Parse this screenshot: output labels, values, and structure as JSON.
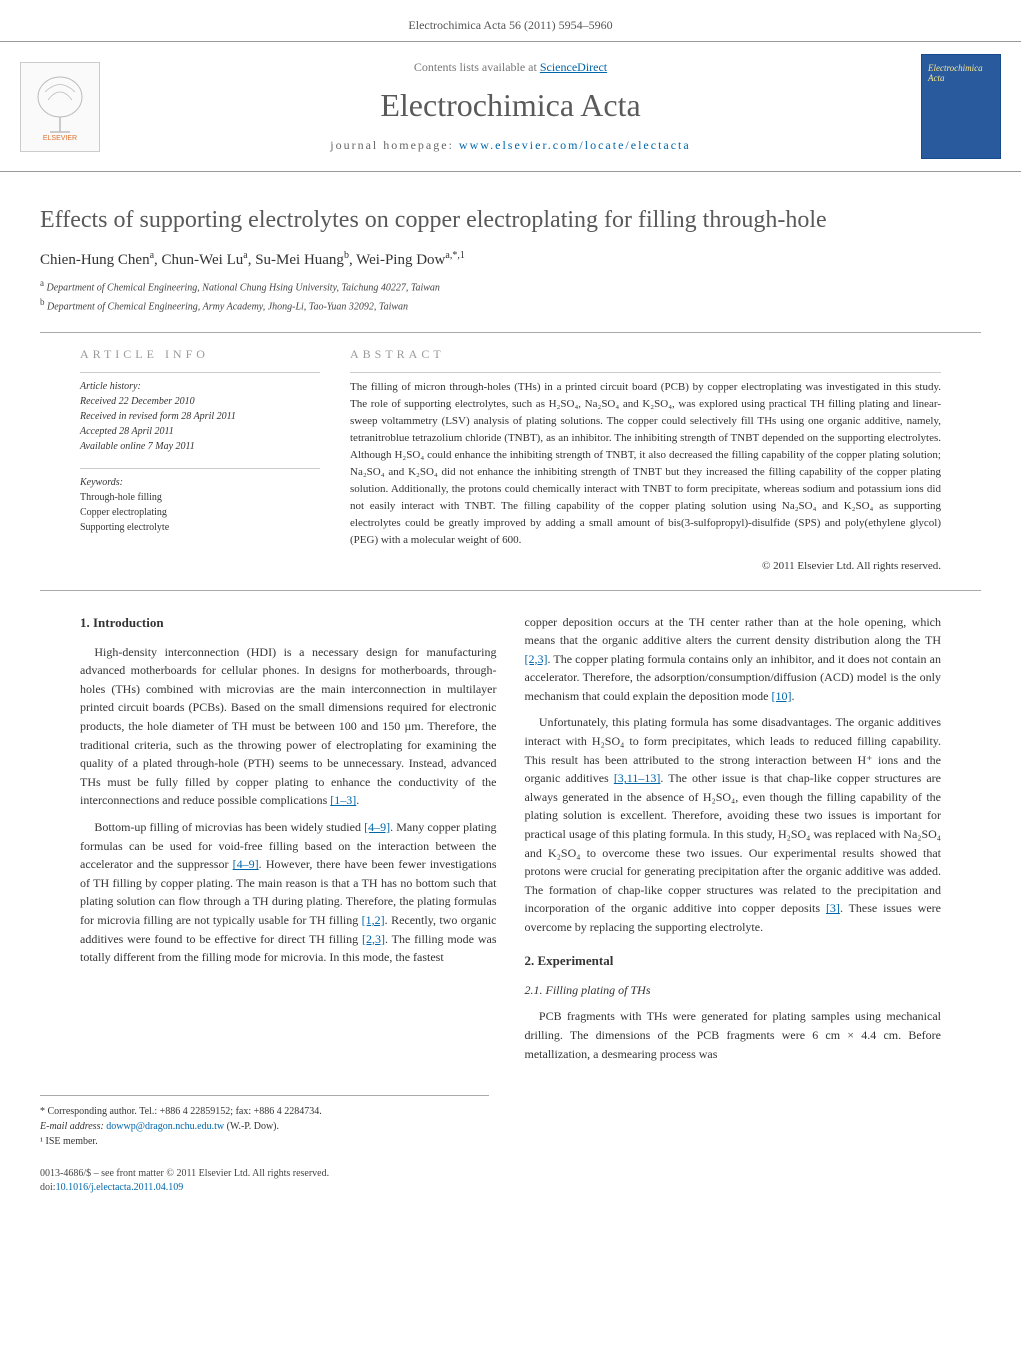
{
  "header": {
    "citation": "Electrochimica Acta 56 (2011) 5954–5960"
  },
  "masthead": {
    "contents_line_prefix": "Contents lists available at ",
    "contents_line_link": "ScienceDirect",
    "journal_name": "Electrochimica Acta",
    "homepage_prefix": "journal homepage: ",
    "homepage_url": "www.elsevier.com/locate/electacta",
    "cover_label": "Electrochimica Acta",
    "elsevier_label": "ELSEVIER"
  },
  "article": {
    "title": "Effects of supporting electrolytes on copper electroplating for filling through-hole",
    "authors_html": "Chien-Hung Chen<sup>a</sup>, Chun-Wei Lu<sup>a</sup>, Su-Mei Huang<sup>b</sup>, Wei-Ping Dow<sup>a,*,1</sup>",
    "affiliations": [
      {
        "sup": "a",
        "text": "Department of Chemical Engineering, National Chung Hsing University, Taichung 40227, Taiwan"
      },
      {
        "sup": "b",
        "text": "Department of Chemical Engineering, Army Academy, Jhong-Li, Tao-Yuan 32092, Taiwan"
      }
    ]
  },
  "info": {
    "heading": "ARTICLE INFO",
    "history_label": "Article history:",
    "history": [
      "Received 22 December 2010",
      "Received in revised form 28 April 2011",
      "Accepted 28 April 2011",
      "Available online 7 May 2011"
    ],
    "keywords_label": "Keywords:",
    "keywords": [
      "Through-hole filling",
      "Copper electroplating",
      "Supporting electrolyte"
    ]
  },
  "abstract": {
    "heading": "ABSTRACT",
    "text": "The filling of micron through-holes (THs) in a printed circuit board (PCB) by copper electroplating was investigated in this study. The role of supporting electrolytes, such as H₂SO₄, Na₂SO₄ and K₂SO₄, was explored using practical TH filling plating and linear-sweep voltammetry (LSV) analysis of plating solutions. The copper could selectively fill THs using one organic additive, namely, tetranitroblue tetrazolium chloride (TNBT), as an inhibitor. The inhibiting strength of TNBT depended on the supporting electrolytes. Although H₂SO₄ could enhance the inhibiting strength of TNBT, it also decreased the filling capability of the copper plating solution; Na₂SO₄ and K₂SO₄ did not enhance the inhibiting strength of TNBT but they increased the filling capability of the copper plating solution. Additionally, the protons could chemically interact with TNBT to form precipitate, whereas sodium and potassium ions did not easily interact with TNBT. The filling capability of the copper plating solution using Na₂SO₄ and K₂SO₄ as supporting electrolytes could be greatly improved by adding a small amount of bis(3-sulfopropyl)-disulfide (SPS) and poly(ethylene glycol) (PEG) with a molecular weight of 600.",
    "copyright": "© 2011 Elsevier Ltd. All rights reserved."
  },
  "body": {
    "sec1_heading": "1. Introduction",
    "col1_p1": "High-density interconnection (HDI) is a necessary design for manufacturing advanced motherboards for cellular phones. In designs for motherboards, through-holes (THs) combined with microvias are the main interconnection in multilayer printed circuit boards (PCBs). Based on the small dimensions required for electronic products, the hole diameter of TH must be between 100 and 150 µm. Therefore, the traditional criteria, such as the throwing power of electroplating for examining the quality of a plated through-hole (PTH) seems to be unnecessary. Instead, advanced THs must be fully filled by copper plating to enhance the conductivity of the interconnections and reduce possible complications ",
    "col1_p1_ref": "[1–3]",
    "col1_p2_a": "Bottom-up filling of microvias has been widely studied ",
    "col1_p2_ref1": "[4–9]",
    "col1_p2_b": ". Many copper plating formulas can be used for void-free filling based on the interaction between the accelerator and the suppressor ",
    "col1_p2_ref2": "[4–9]",
    "col1_p2_c": ". However, there have been fewer investigations of TH filling by copper plating. The main reason is that a TH has no bottom such that plating solution can flow through a TH during plating. Therefore, the plating formulas for microvia filling are not typically usable for TH filling ",
    "col1_p2_ref3": "[1,2]",
    "col1_p2_d": ". Recently, two organic additives were found to be effective for direct TH filling ",
    "col1_p2_ref4": "[2,3]",
    "col1_p2_e": ". The filling mode was totally different from the filling mode for microvia. In this mode, the fastest",
    "col2_p1_a": "copper deposition occurs at the TH center rather than at the hole opening, which means that the organic additive alters the current density distribution along the TH ",
    "col2_p1_ref1": "[2,3]",
    "col2_p1_b": ". The copper plating formula contains only an inhibitor, and it does not contain an accelerator. Therefore, the adsorption/consumption/diffusion (ACD) model is the only mechanism that could explain the deposition mode ",
    "col2_p1_ref2": "[10]",
    "col2_p1_c": ".",
    "col2_p2_a": "Unfortunately, this plating formula has some disadvantages. The organic additives interact with H₂SO₄ to form precipitates, which leads to reduced filling capability. This result has been attributed to the strong interaction between H⁺ ions and the organic additives ",
    "col2_p2_ref1": "[3,11–13]",
    "col2_p2_b": ". The other issue is that chap-like copper structures are always generated in the absence of H₂SO₄, even though the filling capability of the plating solution is excellent. Therefore, avoiding these two issues is important for practical usage of this plating formula. In this study, H₂SO₄ was replaced with Na₂SO₄ and K₂SO₄ to overcome these two issues. Our experimental results showed that protons were crucial for generating precipitation after the organic additive was added. The formation of chap-like copper structures was related to the precipitation and incorporation of the organic additive into copper deposits ",
    "col2_p2_ref2": "[3]",
    "col2_p2_c": ". These issues were overcome by replacing the supporting electrolyte.",
    "sec2_heading": "2. Experimental",
    "sec21_heading": "2.1. Filling plating of THs",
    "col2_p3": "PCB fragments with THs were generated for plating samples using mechanical drilling. The dimensions of the PCB fragments were 6 cm × 4.4 cm. Before metallization, a desmearing process was"
  },
  "footnotes": {
    "corr_label": "* Corresponding author. Tel.: +886 4 22859152; fax: +886 4 2284734.",
    "email_label": "E-mail address: ",
    "email": "dowwp@dragon.nchu.edu.tw",
    "email_suffix": " (W.-P. Dow).",
    "note1": "¹ ISE member."
  },
  "doi": {
    "line1": "0013-4686/$ – see front matter © 2011 Elsevier Ltd. All rights reserved.",
    "line2_prefix": "doi:",
    "line2_link": "10.1016/j.electacta.2011.04.109"
  },
  "colors": {
    "link": "#0066aa",
    "text": "#333333",
    "heading_gray": "#5a5a5a",
    "rule": "#aaaaaa",
    "cover_bg": "#2a5a9e",
    "cover_text": "#f5e68c"
  },
  "typography": {
    "body_pt": 12,
    "title_pt": 24,
    "journal_pt": 32,
    "small_pt": 10
  }
}
